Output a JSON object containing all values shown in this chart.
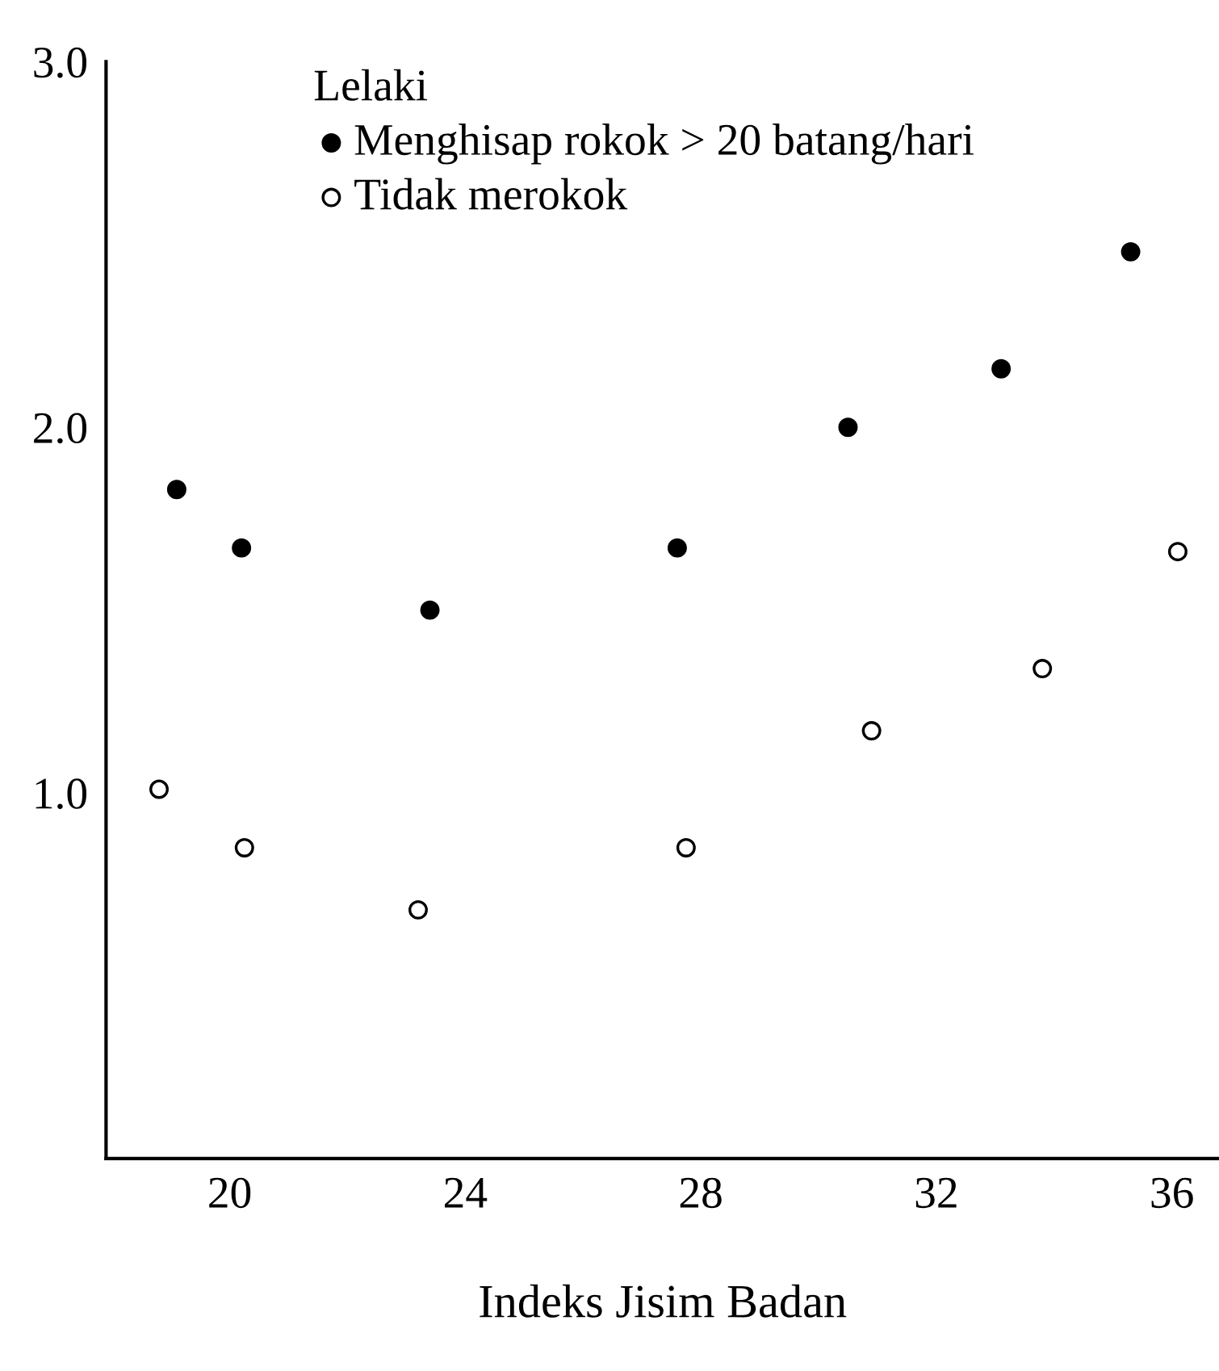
{
  "chart_data": {
    "type": "scatter",
    "xlabel": "Indeks Jisim Badan",
    "legend_title": "Lelaki",
    "legend": "top left",
    "xlim": [
      17.9,
      36.8
    ],
    "xticks": [
      20,
      24,
      28,
      32,
      36
    ],
    "ylim": [
      0,
      3.0
    ],
    "yticks": [
      {
        "value": 1.0,
        "label": "1.0"
      },
      {
        "value": 2.0,
        "label": "2.0"
      },
      {
        "value": 3.0,
        "label": "3.0"
      }
    ],
    "grid": false,
    "marker": "circle",
    "series": [
      {
        "name": "Menghisap rokok > 20 batang/hari",
        "color": "#000000",
        "x": [
          19.1,
          20.2,
          23.4,
          27.6,
          30.5,
          33.1,
          35.3
        ],
        "values": [
          1.83,
          1.67,
          1.5,
          1.67,
          2.0,
          2.16,
          2.48
        ]
      },
      {
        "name": "Tidak merokok",
        "color": "#ffffff",
        "x": [
          18.8,
          20.25,
          23.2,
          27.75,
          30.9,
          33.8,
          36.1
        ],
        "values": [
          1.01,
          0.85,
          0.68,
          0.85,
          1.17,
          1.34,
          1.66
        ]
      }
    ]
  }
}
